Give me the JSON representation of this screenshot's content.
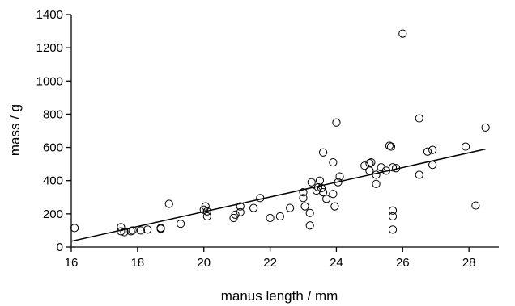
{
  "chart_data": {
    "type": "scatter",
    "title": "",
    "xlabel": "manus length / mm",
    "ylabel": "mass / g",
    "xlim": [
      16,
      28.9
    ],
    "ylim": [
      0,
      1400
    ],
    "xticks": [
      16,
      18,
      20,
      22,
      24,
      26,
      28
    ],
    "yticks": [
      0,
      200,
      400,
      600,
      800,
      1000,
      1200,
      1400
    ],
    "grid": false,
    "legend": "none",
    "series": [
      {
        "marker": "open-circle",
        "color": "#000000",
        "points": [
          [
            16.1,
            115
          ],
          [
            17.5,
            120
          ],
          [
            17.5,
            95
          ],
          [
            17.6,
            90
          ],
          [
            17.8,
            95
          ],
          [
            17.85,
            100
          ],
          [
            18.1,
            100
          ],
          [
            18.3,
            105
          ],
          [
            18.7,
            115
          ],
          [
            18.7,
            110
          ],
          [
            18.95,
            260
          ],
          [
            19.3,
            140
          ],
          [
            20.0,
            225
          ],
          [
            20.05,
            245
          ],
          [
            20.1,
            215
          ],
          [
            20.1,
            185
          ],
          [
            20.9,
            175
          ],
          [
            20.95,
            195
          ],
          [
            21.1,
            210
          ],
          [
            21.1,
            245
          ],
          [
            21.5,
            235
          ],
          [
            21.7,
            295
          ],
          [
            22.0,
            175
          ],
          [
            22.3,
            185
          ],
          [
            22.6,
            235
          ],
          [
            23.0,
            330
          ],
          [
            23.0,
            295
          ],
          [
            23.05,
            245
          ],
          [
            23.2,
            205
          ],
          [
            23.2,
            130
          ],
          [
            23.25,
            390
          ],
          [
            23.4,
            340
          ],
          [
            23.45,
            360
          ],
          [
            23.5,
            400
          ],
          [
            23.55,
            355
          ],
          [
            23.6,
            570
          ],
          [
            23.6,
            330
          ],
          [
            23.7,
            290
          ],
          [
            23.9,
            320
          ],
          [
            23.9,
            510
          ],
          [
            23.95,
            245
          ],
          [
            24.0,
            750
          ],
          [
            24.05,
            390
          ],
          [
            24.1,
            425
          ],
          [
            24.85,
            490
          ],
          [
            25.0,
            505
          ],
          [
            25.0,
            460
          ],
          [
            25.05,
            510
          ],
          [
            25.2,
            435
          ],
          [
            25.2,
            380
          ],
          [
            25.35,
            480
          ],
          [
            25.5,
            460
          ],
          [
            25.6,
            610
          ],
          [
            25.65,
            605
          ],
          [
            25.7,
            220
          ],
          [
            25.7,
            480
          ],
          [
            25.7,
            185
          ],
          [
            25.7,
            105
          ],
          [
            25.8,
            475
          ],
          [
            26.0,
            1285
          ],
          [
            26.5,
            775
          ],
          [
            26.5,
            435
          ],
          [
            26.75,
            575
          ],
          [
            26.9,
            585
          ],
          [
            26.9,
            495
          ],
          [
            27.9,
            605
          ],
          [
            28.2,
            250
          ],
          [
            28.5,
            720
          ]
        ]
      }
    ],
    "trendline": {
      "x": [
        16,
        28.5
      ],
      "y": [
        35,
        590
      ]
    }
  }
}
